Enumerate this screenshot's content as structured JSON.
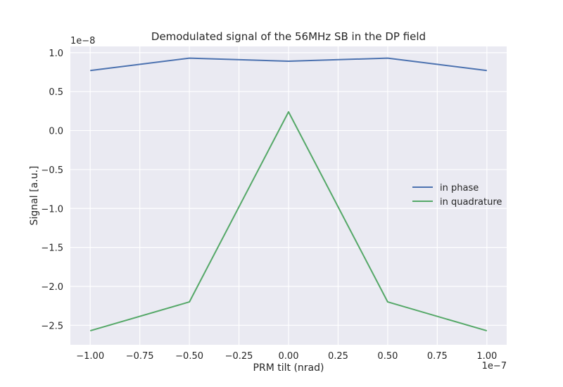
{
  "chart_data": {
    "type": "line",
    "title": "Demodulated signal of the 56MHz SB in the DP field",
    "xlabel": "PRM tilt (nrad)",
    "ylabel": "Signal [a.u.]",
    "x_offset_label": "1e−7",
    "y_offset_label": "1e−8",
    "x": [
      -1.0,
      -0.5,
      0.0,
      0.5,
      1.0
    ],
    "xlim": [
      -1.1,
      1.1
    ],
    "ylim": [
      -2.75,
      1.08
    ],
    "x_ticks": [
      -1.0,
      -0.75,
      -0.5,
      -0.25,
      0.0,
      0.25,
      0.5,
      0.75,
      1.0
    ],
    "x_tick_labels": [
      "−1.00",
      "−0.75",
      "−0.50",
      "−0.25",
      "0.00",
      "0.25",
      "0.50",
      "0.75",
      "1.00"
    ],
    "y_ticks": [
      1.0,
      0.5,
      0.0,
      -0.5,
      -1.0,
      -1.5,
      -2.0,
      -2.5
    ],
    "y_tick_labels": [
      "1.0",
      "0.5",
      "0.0",
      "−0.5",
      "−1.0",
      "−1.5",
      "−2.0",
      "−2.5"
    ],
    "grid": true,
    "legend_position": "center-right",
    "series": [
      {
        "name": "in phase",
        "color": "#4c72b0",
        "values": [
          0.77,
          0.93,
          0.89,
          0.93,
          0.77
        ]
      },
      {
        "name": "in quadrature",
        "color": "#55a868",
        "values": [
          -2.57,
          -2.2,
          0.24,
          -2.2,
          -2.57
        ]
      }
    ]
  }
}
